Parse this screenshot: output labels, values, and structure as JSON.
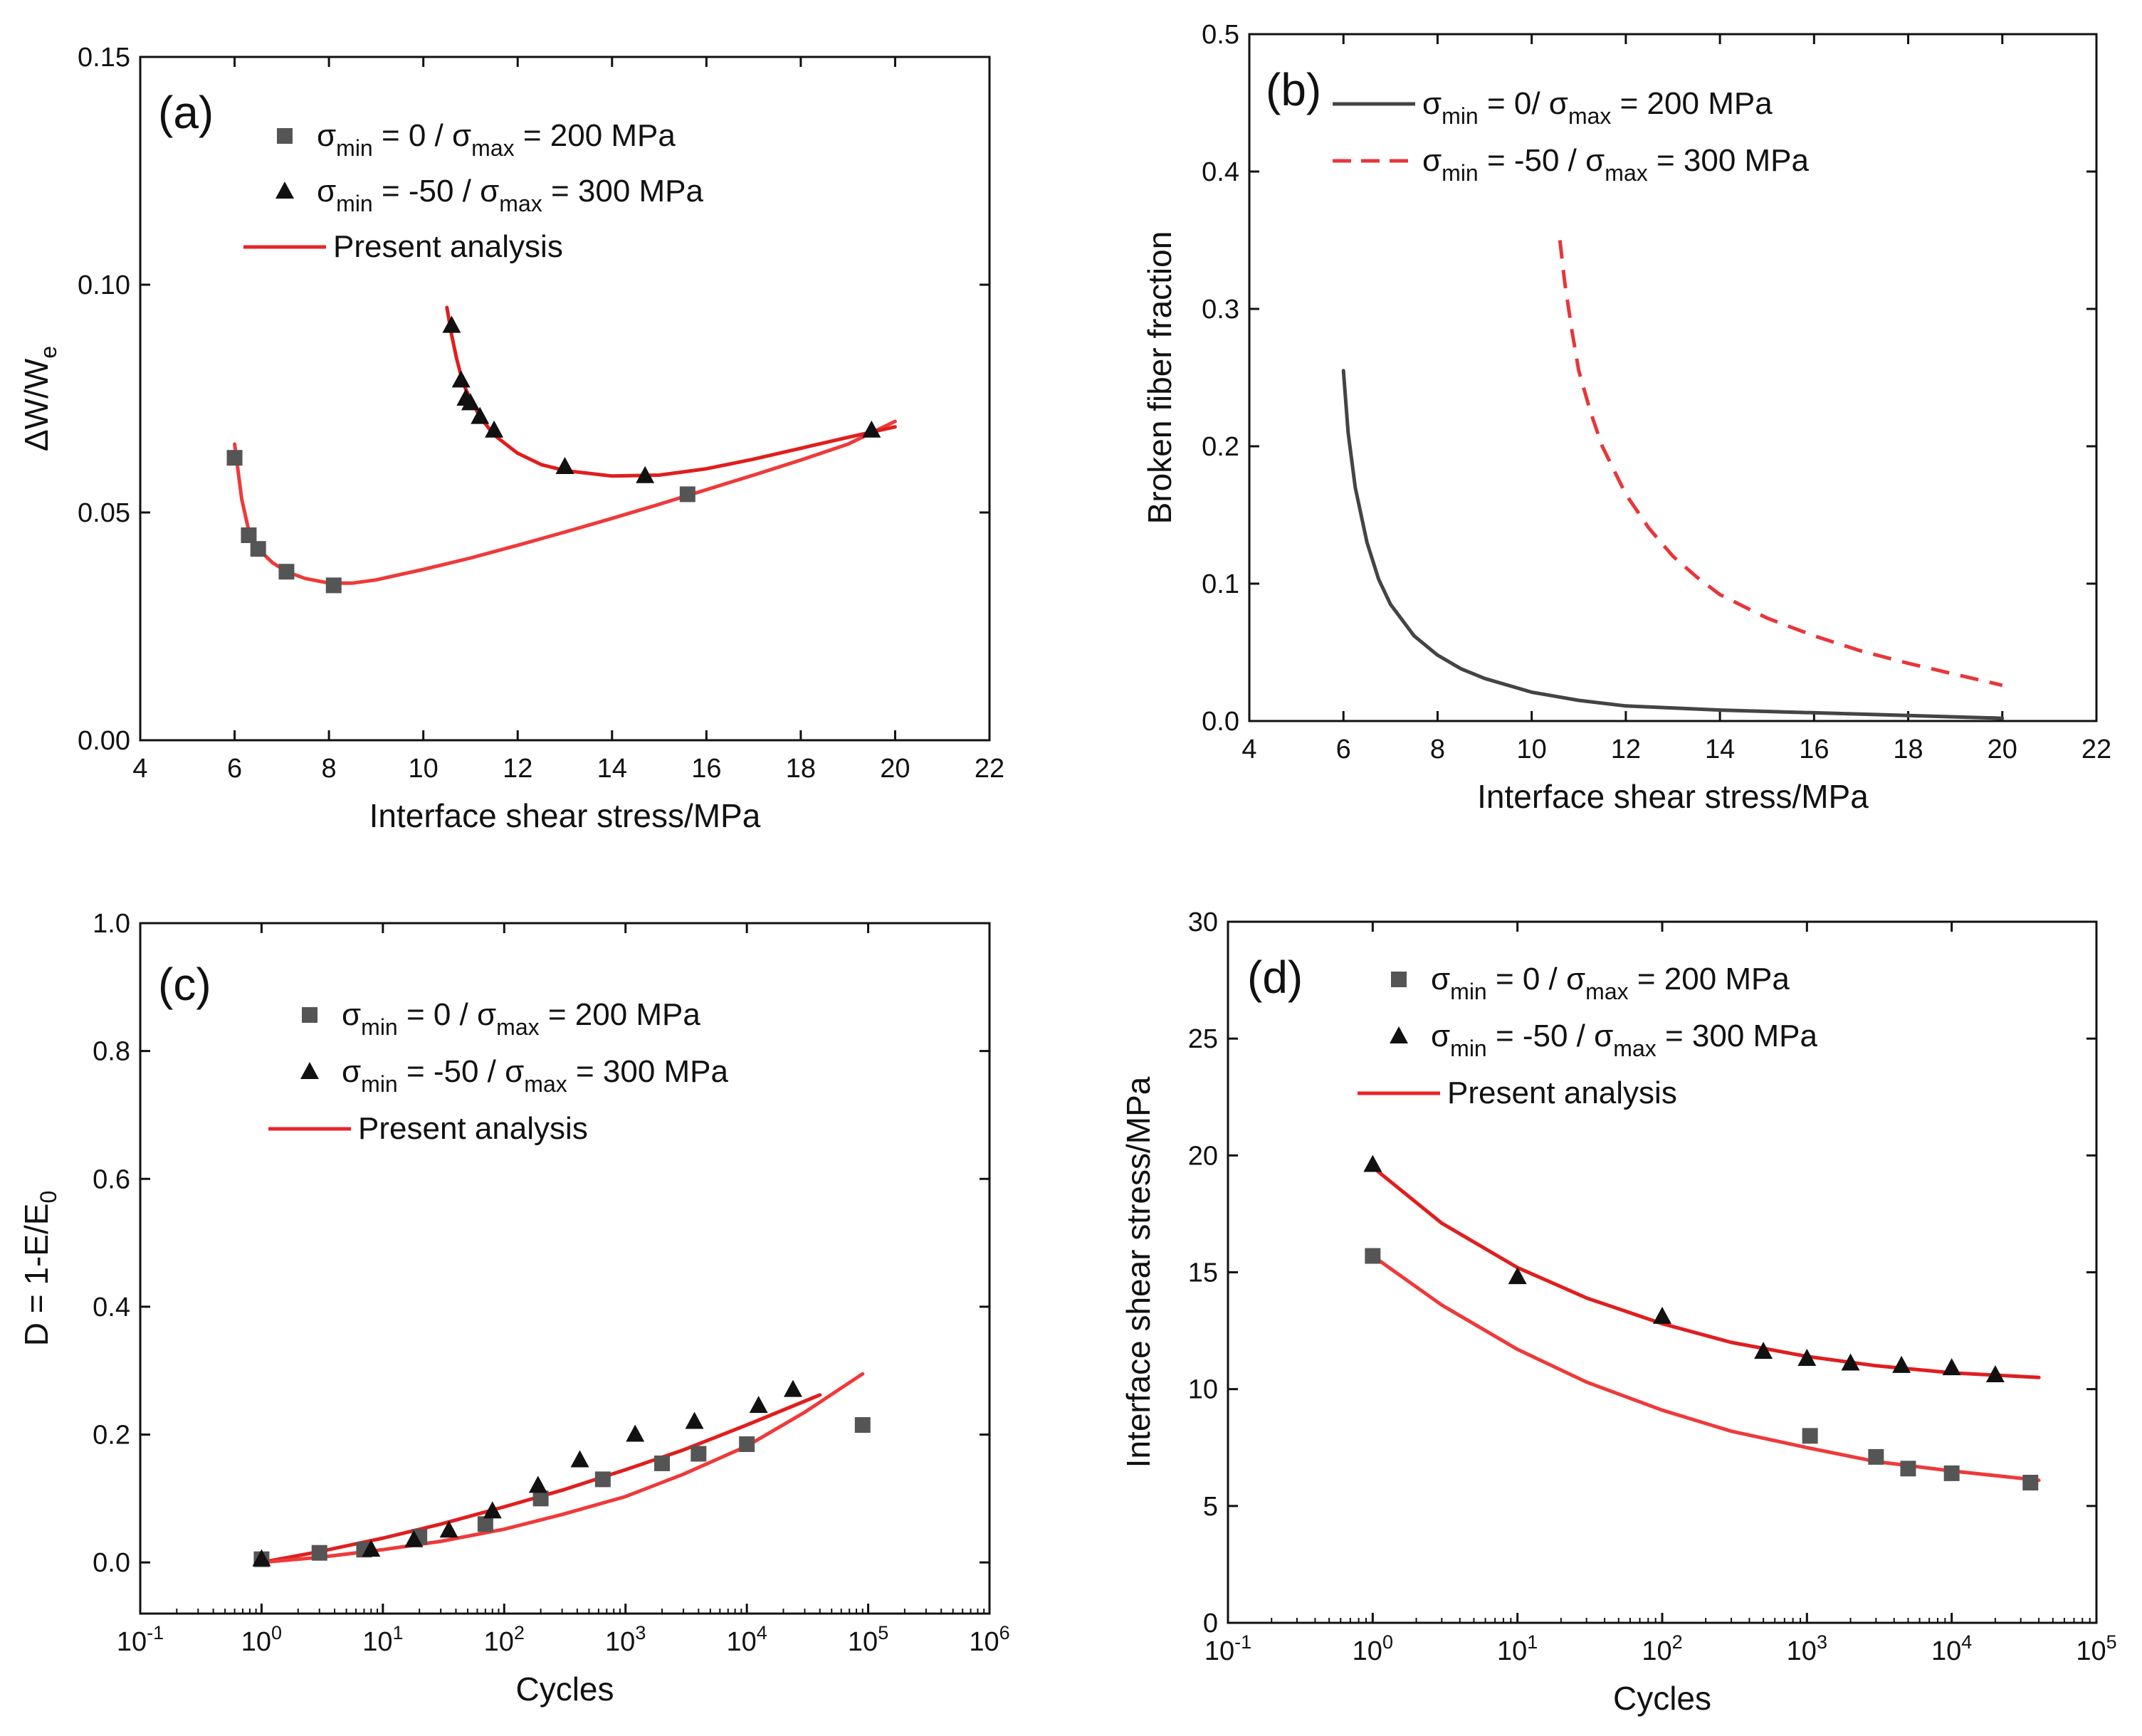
{
  "chart_data": [
    {
      "id": "a",
      "type": "scatter",
      "panel_label": "(a)",
      "xlabel": "Interface shear stress/MPa",
      "ylabel": "ΔW/W",
      "ylabel_sub": "e",
      "xscale": "linear",
      "xlim": [
        4,
        22
      ],
      "ylim": [
        0,
        0.15
      ],
      "xticks": [
        4,
        6,
        8,
        10,
        12,
        14,
        16,
        18,
        20,
        22
      ],
      "yticks": [
        0.0,
        0.05,
        0.1,
        0.15
      ],
      "xtick_labels": [
        "4",
        "6",
        "8",
        "10",
        "12",
        "14",
        "16",
        "18",
        "20",
        "22"
      ],
      "ytick_labels": [
        "0.00",
        "0.05",
        "0.10",
        "0.15"
      ],
      "legend_position": "top-left",
      "legend": [
        {
          "marker": "square",
          "color": "#555555",
          "parts": [
            [
              "σ",
              ""
            ],
            [
              "min",
              "sub"
            ],
            [
              " = 0 / σ",
              ""
            ],
            [
              "max",
              "sub"
            ],
            [
              " = 200 MPa",
              ""
            ]
          ]
        },
        {
          "marker": "triangle",
          "color": "#111111",
          "parts": [
            [
              "σ",
              ""
            ],
            [
              "min",
              "sub"
            ],
            [
              " = -50 / σ",
              ""
            ],
            [
              "max",
              "sub"
            ],
            [
              " = 300 MPa",
              ""
            ]
          ]
        },
        {
          "marker": "line",
          "color": "#e8262a",
          "parts": [
            [
              "Present analysis",
              ""
            ]
          ]
        }
      ],
      "series": [
        {
          "name": "σmin = 0 / σmax = 200 MPa",
          "kind": "marker",
          "marker": "square",
          "color": "#555555",
          "x": [
            6.0,
            6.3,
            6.5,
            7.1,
            8.1,
            15.6
          ],
          "y": [
            0.062,
            0.045,
            0.042,
            0.037,
            0.034,
            0.054
          ]
        },
        {
          "name": "σmin = -50 / σmax = 300 MPa",
          "kind": "marker",
          "marker": "triangle",
          "color": "#111111",
          "x": [
            10.6,
            10.8,
            10.9,
            11.0,
            11.2,
            11.5,
            13.0,
            14.7,
            19.5
          ],
          "y": [
            0.091,
            0.079,
            0.075,
            0.074,
            0.071,
            0.068,
            0.06,
            0.058,
            0.068
          ]
        },
        {
          "name": "Present analysis (200 MPa)",
          "kind": "line",
          "color": "#ee3a3a",
          "dash": "none",
          "x": [
            6.0,
            6.15,
            6.3,
            6.5,
            6.8,
            7.1,
            7.5,
            8.0,
            8.5,
            9.0,
            10.0,
            11.0,
            12.0,
            13.0,
            14.0,
            15.0,
            16.0,
            17.0,
            18.0,
            19.0,
            20.0
          ],
          "y": [
            0.065,
            0.053,
            0.046,
            0.042,
            0.039,
            0.037,
            0.0355,
            0.0345,
            0.0345,
            0.0352,
            0.0375,
            0.04,
            0.0428,
            0.0457,
            0.0487,
            0.0518,
            0.055,
            0.0582,
            0.0615,
            0.065,
            0.07
          ]
        },
        {
          "name": "Present analysis (300 MPa)",
          "kind": "line",
          "color": "#e01e1e",
          "dash": "none",
          "x": [
            10.5,
            10.6,
            10.7,
            10.8,
            10.9,
            11.0,
            11.2,
            11.5,
            12.0,
            12.5,
            13.0,
            14.0,
            15.0,
            16.0,
            17.0,
            18.0,
            19.0,
            20.0
          ],
          "y": [
            0.095,
            0.089,
            0.084,
            0.08,
            0.077,
            0.075,
            0.071,
            0.067,
            0.063,
            0.0605,
            0.0592,
            0.058,
            0.0582,
            0.0596,
            0.0617,
            0.0641,
            0.0665,
            0.0688
          ]
        }
      ]
    },
    {
      "id": "b",
      "type": "line",
      "panel_label": "(b)",
      "xlabel": "Interface shear stress/MPa",
      "ylabel": "Broken fiber fraction",
      "ylabel_sub": "",
      "xscale": "linear",
      "xlim": [
        4,
        22
      ],
      "ylim": [
        0,
        0.5
      ],
      "xticks": [
        4,
        6,
        8,
        10,
        12,
        14,
        16,
        18,
        20,
        22
      ],
      "yticks": [
        0.0,
        0.1,
        0.2,
        0.3,
        0.4,
        0.5
      ],
      "xtick_labels": [
        "4",
        "6",
        "8",
        "10",
        "12",
        "14",
        "16",
        "18",
        "20",
        "22"
      ],
      "ytick_labels": [
        "0.0",
        "0.1",
        "0.2",
        "0.3",
        "0.4",
        "0.5"
      ],
      "legend_position": "top-left",
      "legend": [
        {
          "marker": "line",
          "color": "#444444",
          "parts": [
            [
              "σ",
              ""
            ],
            [
              "min",
              "sub"
            ],
            [
              " = 0/ σ",
              ""
            ],
            [
              "max",
              "sub"
            ],
            [
              " = 200 MPa",
              ""
            ]
          ]
        },
        {
          "marker": "dashline",
          "color": "#e8363a",
          "parts": [
            [
              "σ",
              ""
            ],
            [
              "min",
              "sub"
            ],
            [
              " = -50 / σ",
              ""
            ],
            [
              "max",
              "sub"
            ],
            [
              " = 300 MPa",
              ""
            ]
          ]
        }
      ],
      "series": [
        {
          "name": "σmin = 0/ σmax = 200 MPa",
          "kind": "line",
          "color": "#444444",
          "dash": "none",
          "x": [
            6.0,
            6.1,
            6.25,
            6.5,
            6.75,
            7.0,
            7.5,
            8.0,
            8.5,
            9.0,
            10.0,
            11.0,
            12.0,
            14.0,
            16.0,
            18.0,
            20.0
          ],
          "y": [
            0.255,
            0.21,
            0.17,
            0.13,
            0.103,
            0.085,
            0.062,
            0.048,
            0.038,
            0.031,
            0.021,
            0.015,
            0.011,
            0.008,
            0.006,
            0.004,
            0.002
          ]
        },
        {
          "name": "σmin = -50 / σmax = 300 MPa",
          "kind": "line",
          "color": "#e8363a",
          "dash": "dashed",
          "x": [
            10.6,
            10.7,
            10.85,
            11.0,
            11.25,
            11.5,
            12.0,
            12.5,
            13.0,
            13.5,
            14.0,
            15.0,
            16.0,
            17.0,
            18.0,
            19.0,
            20.0
          ],
          "y": [
            0.35,
            0.32,
            0.285,
            0.255,
            0.225,
            0.2,
            0.165,
            0.14,
            0.12,
            0.105,
            0.092,
            0.075,
            0.062,
            0.051,
            0.042,
            0.034,
            0.026
          ]
        }
      ]
    },
    {
      "id": "c",
      "type": "scatter",
      "panel_label": "(c)",
      "xlabel": "Cycles",
      "ylabel": "D = 1-E/E",
      "ylabel_sub": "0",
      "xscale": "log",
      "xlim": [
        0.1,
        1000000
      ],
      "ylim": [
        -0.08,
        1.0
      ],
      "xticks": [
        0.1,
        1,
        10,
        100,
        1000,
        10000,
        100000,
        1000000
      ],
      "yticks": [
        0.0,
        0.2,
        0.4,
        0.6,
        0.8,
        1.0
      ],
      "xtick_labels": [
        "10^-1",
        "10^0",
        "10^1",
        "10^2",
        "10^3",
        "10^4",
        "10^5",
        "10^6"
      ],
      "ytick_labels": [
        "0.0",
        "0.2",
        "0.4",
        "0.6",
        "0.8",
        "1.0"
      ],
      "legend_position": "top-left",
      "legend": [
        {
          "marker": "square",
          "color": "#555555",
          "parts": [
            [
              "σ",
              ""
            ],
            [
              "min",
              "sub"
            ],
            [
              " = 0 / σ",
              ""
            ],
            [
              "max",
              "sub"
            ],
            [
              " = 200 MPa",
              ""
            ]
          ]
        },
        {
          "marker": "triangle",
          "color": "#111111",
          "parts": [
            [
              "σ",
              ""
            ],
            [
              "min",
              "sub"
            ],
            [
              " = -50 / σ",
              ""
            ],
            [
              "max",
              "sub"
            ],
            [
              " = 300 MPa",
              ""
            ]
          ]
        },
        {
          "marker": "line",
          "color": "#e8262a",
          "parts": [
            [
              "Present analysis",
              ""
            ]
          ]
        }
      ],
      "series": [
        {
          "name": "σmin = 0 / σmax = 200 MPa",
          "kind": "marker",
          "marker": "square",
          "color": "#555555",
          "x": [
            1,
            3,
            7,
            20,
            70,
            200,
            650,
            2000,
            4000,
            10000,
            90000
          ],
          "y": [
            0.005,
            0.015,
            0.02,
            0.04,
            0.06,
            0.1,
            0.13,
            0.155,
            0.17,
            0.185,
            0.215
          ]
        },
        {
          "name": "σmin = -50 / σmax = 300 MPa",
          "kind": "marker",
          "marker": "triangle",
          "color": "#111111",
          "x": [
            1,
            8,
            18,
            35,
            80,
            190,
            420,
            1200,
            3700,
            12500,
            24000
          ],
          "y": [
            0.005,
            0.02,
            0.035,
            0.05,
            0.08,
            0.12,
            0.16,
            0.2,
            0.22,
            0.245,
            0.27
          ]
        },
        {
          "name": "Present analysis (300 MPa)",
          "kind": "line",
          "color": "#e01e1e",
          "dash": "none",
          "x": [
            1,
            3,
            10,
            30,
            100,
            300,
            1000,
            3000,
            10000,
            40000
          ],
          "y": [
            0.0,
            0.017,
            0.038,
            0.06,
            0.087,
            0.113,
            0.145,
            0.176,
            0.215,
            0.262
          ]
        },
        {
          "name": "Present analysis (200 MPa)",
          "kind": "line",
          "color": "#ee3a3a",
          "dash": "none",
          "x": [
            1,
            3,
            10,
            30,
            100,
            300,
            1000,
            3000,
            10000,
            30000,
            90000
          ],
          "y": [
            0.0,
            0.008,
            0.02,
            0.033,
            0.052,
            0.075,
            0.103,
            0.138,
            0.182,
            0.235,
            0.295
          ]
        }
      ]
    },
    {
      "id": "d",
      "type": "scatter",
      "panel_label": "(d)",
      "xlabel": "Cycles",
      "ylabel": "Interface shear stress/MPa",
      "ylabel_sub": "",
      "xscale": "log",
      "xlim": [
        0.1,
        100000
      ],
      "ylim": [
        0,
        30
      ],
      "xticks": [
        0.1,
        1,
        10,
        100,
        1000,
        10000,
        100000
      ],
      "yticks": [
        0,
        5,
        10,
        15,
        20,
        25,
        30
      ],
      "xtick_labels": [
        "10^-1",
        "10^0",
        "10^1",
        "10^2",
        "10^3",
        "10^4",
        "10^5"
      ],
      "ytick_labels": [
        "0",
        "5",
        "10",
        "15",
        "20",
        "25",
        "30"
      ],
      "legend_position": "top-left",
      "legend": [
        {
          "marker": "square",
          "color": "#555555",
          "parts": [
            [
              "σ",
              ""
            ],
            [
              "min",
              "sub"
            ],
            [
              " = 0 / σ",
              ""
            ],
            [
              "max",
              "sub"
            ],
            [
              " = 200 MPa",
              ""
            ]
          ]
        },
        {
          "marker": "triangle",
          "color": "#111111",
          "parts": [
            [
              "σ",
              ""
            ],
            [
              "min",
              "sub"
            ],
            [
              " = -50 / σ",
              ""
            ],
            [
              "max",
              "sub"
            ],
            [
              " = 300 MPa",
              ""
            ]
          ]
        },
        {
          "marker": "line",
          "color": "#e8262a",
          "parts": [
            [
              "Present analysis",
              ""
            ]
          ]
        }
      ],
      "series": [
        {
          "name": "σmin = 0 / σmax = 200 MPa",
          "kind": "marker",
          "marker": "square",
          "color": "#555555",
          "x": [
            1,
            1050,
            3000,
            5000,
            10000,
            35000
          ],
          "y": [
            15.7,
            8.0,
            7.1,
            6.6,
            6.4,
            6.0
          ]
        },
        {
          "name": "σmin = -50 / σmax = 300 MPa",
          "kind": "marker",
          "marker": "triangle",
          "color": "#111111",
          "x": [
            1,
            10,
            100,
            500,
            1000,
            2000,
            4500,
            10000,
            20000
          ],
          "y": [
            19.6,
            14.8,
            13.1,
            11.6,
            11.3,
            11.1,
            11.0,
            10.9,
            10.6
          ]
        },
        {
          "name": "Present analysis (300 MPa)",
          "kind": "line",
          "color": "#e01e1e",
          "dash": "none",
          "x": [
            1,
            3,
            10,
            30,
            100,
            300,
            1000,
            3000,
            10000,
            40000
          ],
          "y": [
            19.5,
            17.1,
            15.2,
            13.9,
            12.8,
            12.0,
            11.4,
            11.0,
            10.7,
            10.5
          ]
        },
        {
          "name": "Present analysis (200 MPa)",
          "kind": "line",
          "color": "#ee3a3a",
          "dash": "none",
          "x": [
            1,
            3,
            10,
            30,
            100,
            300,
            1000,
            3000,
            10000,
            40000
          ],
          "y": [
            15.7,
            13.6,
            11.7,
            10.3,
            9.1,
            8.2,
            7.5,
            6.9,
            6.5,
            6.1
          ]
        }
      ]
    }
  ]
}
